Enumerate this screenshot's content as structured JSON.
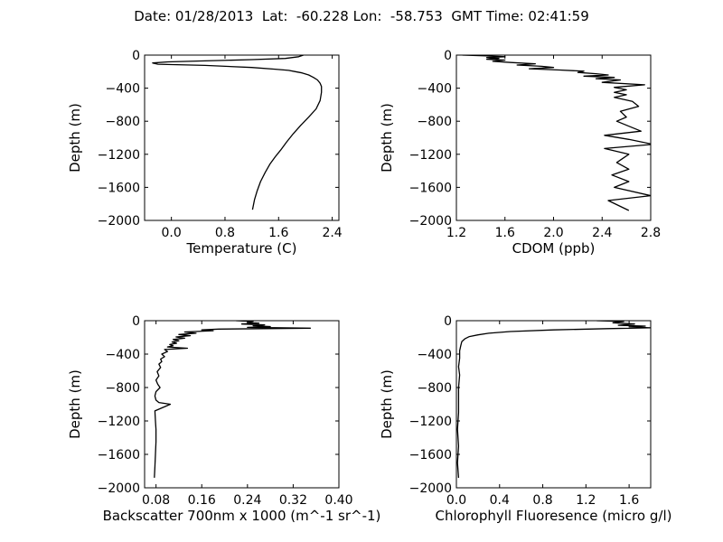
{
  "figure": {
    "title": "Date: 01/28/2013  Lat:  -60.228 Lon:  -58.753  GMT Time: 02:41:59"
  },
  "chart_data": [
    {
      "type": "line",
      "name": "temperature",
      "xlabel": "Temperature (C)",
      "ylabel": "Depth (m)",
      "xlim": [
        -0.4,
        2.5
      ],
      "ylim": [
        -2000,
        0
      ],
      "xticks": [
        0.0,
        0.8,
        1.6,
        2.4
      ],
      "xtick_labels": [
        "0.0",
        "0.8",
        "1.6",
        "2.4"
      ],
      "yticks": [
        0,
        -400,
        -800,
        -1200,
        -1600,
        -2000
      ],
      "ytick_labels": [
        "0",
        "−400",
        "−800",
        "−1200",
        "−1600",
        "−2000"
      ],
      "grid": false,
      "series": [
        {
          "x": [
            1.97,
            1.9,
            1.7,
            1.2,
            0.5,
            -0.05,
            -0.28,
            -0.2,
            0.5,
            1.2,
            1.55,
            1.75,
            1.85,
            1.95,
            2.05,
            2.12,
            2.18,
            2.22,
            2.24,
            2.24,
            2.22,
            2.16,
            2.05,
            1.93,
            1.82,
            1.72,
            1.63,
            1.55,
            1.47,
            1.4,
            1.33,
            1.28,
            1.24,
            1.21
          ],
          "y": [
            0,
            -20,
            -40,
            -55,
            -70,
            -82,
            -95,
            -110,
            -125,
            -150,
            -170,
            -185,
            -200,
            -215,
            -240,
            -270,
            -300,
            -340,
            -380,
            -450,
            -550,
            -650,
            -750,
            -850,
            -950,
            -1050,
            -1150,
            -1230,
            -1320,
            -1420,
            -1530,
            -1640,
            -1750,
            -1870
          ]
        }
      ]
    },
    {
      "type": "line",
      "name": "cdom",
      "xlabel": "CDOM (ppb)",
      "ylabel": "Depth (m)",
      "xlim": [
        1.2,
        2.8
      ],
      "ylim": [
        -2000,
        0
      ],
      "xticks": [
        1.2,
        1.6,
        2.0,
        2.4,
        2.8
      ],
      "xtick_labels": [
        "1.2",
        "1.6",
        "2.0",
        "2.4",
        "2.8"
      ],
      "yticks": [
        0,
        -400,
        -800,
        -1200,
        -1600,
        -2000
      ],
      "ytick_labels": [
        "0",
        "−400",
        "−800",
        "−1200",
        "−1600",
        "−2000"
      ],
      "grid": false,
      "series": [
        {
          "x": [
            1.25,
            1.45,
            1.6,
            1.45,
            1.55,
            1.45,
            1.6,
            1.5,
            1.65,
            1.85,
            1.7,
            1.9,
            2.0,
            1.8,
            2.05,
            2.25,
            2.2,
            2.35,
            2.45,
            2.25,
            2.5,
            2.35,
            2.55,
            2.4,
            2.75,
            2.5,
            2.6,
            2.5,
            2.6,
            2.5,
            2.65,
            2.7,
            2.55,
            2.6,
            2.52,
            2.62,
            2.72,
            2.42,
            2.62,
            2.82,
            2.42,
            2.62,
            2.52,
            2.62,
            2.48,
            2.62,
            2.5,
            2.8,
            2.45,
            2.62
          ],
          "y": [
            0,
            -10,
            -20,
            -30,
            -40,
            -50,
            -60,
            -75,
            -90,
            -105,
            -120,
            -135,
            -150,
            -165,
            -180,
            -195,
            -210,
            -225,
            -240,
            -255,
            -270,
            -285,
            -300,
            -330,
            -360,
            -390,
            -420,
            -450,
            -480,
            -510,
            -560,
            -620,
            -680,
            -750,
            -800,
            -860,
            -920,
            -970,
            -1020,
            -1080,
            -1130,
            -1200,
            -1300,
            -1380,
            -1450,
            -1530,
            -1600,
            -1700,
            -1760,
            -1880
          ]
        }
      ]
    },
    {
      "type": "line",
      "name": "backscatter",
      "xlabel": "Backscatter 700nm x 1000 (m^-1 sr^-1)",
      "ylabel": "Depth (m)",
      "xlim": [
        0.06,
        0.4
      ],
      "ylim": [
        -2000,
        0
      ],
      "xticks": [
        0.08,
        0.16,
        0.24,
        0.32,
        0.4
      ],
      "xtick_labels": [
        "0.08",
        "0.16",
        "0.24",
        "0.32",
        "0.40"
      ],
      "yticks": [
        0,
        -400,
        -800,
        -1200,
        -1600,
        -2000
      ],
      "ytick_labels": [
        "0",
        "−400",
        "−800",
        "−1200",
        "−1600",
        "−2000"
      ],
      "grid": false,
      "series": [
        {
          "x": [
            0.22,
            0.25,
            0.24,
            0.26,
            0.23,
            0.27,
            0.25,
            0.28,
            0.24,
            0.35,
            0.19,
            0.16,
            0.18,
            0.13,
            0.15,
            0.12,
            0.14,
            0.115,
            0.13,
            0.11,
            0.12,
            0.108,
            0.116,
            0.104,
            0.11,
            0.1,
            0.135,
            0.095,
            0.1,
            0.09,
            0.095,
            0.088,
            0.09,
            0.085,
            0.088,
            0.082,
            0.085,
            0.08,
            0.083,
            0.087,
            0.08,
            0.078,
            0.08,
            0.085,
            0.105,
            0.078,
            0.079,
            0.08,
            0.08,
            0.079,
            0.078,
            0.077
          ],
          "y": [
            0,
            -10,
            -20,
            -30,
            -40,
            -50,
            -60,
            -70,
            -80,
            -90,
            -100,
            -110,
            -120,
            -135,
            -150,
            -165,
            -180,
            -195,
            -210,
            -225,
            -240,
            -255,
            -270,
            -285,
            -300,
            -315,
            -330,
            -345,
            -370,
            -400,
            -430,
            -460,
            -490,
            -520,
            -560,
            -610,
            -660,
            -710,
            -760,
            -800,
            -850,
            -900,
            -950,
            -980,
            -1000,
            -1080,
            -1200,
            -1300,
            -1450,
            -1600,
            -1750,
            -1880
          ]
        }
      ]
    },
    {
      "type": "line",
      "name": "chlorophyll",
      "xlabel": "Chlorophyll Fluoresence (micro g/l)",
      "ylabel": "Depth (m)",
      "xlim": [
        0.0,
        1.8
      ],
      "ylim": [
        -2000,
        0
      ],
      "xticks": [
        0.0,
        0.4,
        0.8,
        1.2,
        1.6
      ],
      "xtick_labels": [
        "0.0",
        "0.4",
        "0.8",
        "1.2",
        "1.6"
      ],
      "yticks": [
        0,
        -400,
        -800,
        -1200,
        -1600,
        -2000
      ],
      "ytick_labels": [
        "0",
        "−400",
        "−800",
        "−1200",
        "−1600",
        "−2000"
      ],
      "grid": false,
      "series": [
        {
          "x": [
            1.3,
            1.55,
            1.45,
            1.65,
            1.5,
            1.75,
            1.6,
            1.8,
            1.4,
            0.9,
            0.5,
            0.3,
            0.2,
            0.12,
            0.08,
            0.05,
            0.04,
            0.03,
            0.03,
            0.02,
            0.03,
            0.02,
            0.02,
            0.02,
            0.01,
            0.02,
            0.01,
            0.02
          ],
          "y": [
            0,
            -10,
            -25,
            -40,
            -55,
            -65,
            -75,
            -85,
            -95,
            -110,
            -130,
            -150,
            -170,
            -190,
            -215,
            -250,
            -300,
            -360,
            -450,
            -550,
            -650,
            -800,
            -950,
            -1100,
            -1300,
            -1500,
            -1700,
            -1880
          ]
        }
      ]
    }
  ]
}
